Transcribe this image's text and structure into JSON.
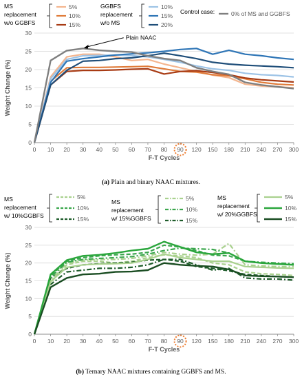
{
  "chart_data": [
    {
      "type": "line",
      "caption_letter": "(a)",
      "caption_text": "Plain and binary NAAC mixtures.",
      "xlabel": "F-T Cycles",
      "ylabel": "Weight Change (%)",
      "x": [
        0,
        10,
        20,
        30,
        40,
        50,
        60,
        70,
        80,
        90,
        120,
        150,
        180,
        210,
        240,
        270,
        300
      ],
      "ylim": [
        0,
        30
      ],
      "yticks": [
        0,
        5,
        10,
        15,
        20,
        25,
        30
      ],
      "highlight_tick": "90",
      "legend": {
        "groups": [
          {
            "title_lines": [
              "MS",
              "replacement",
              "w/o GGBFS"
            ],
            "entries": [
              0,
              1,
              2
            ]
          },
          {
            "title_lines": [
              "GGBFS",
              "replacement",
              "w/o MS"
            ],
            "entries": [
              3,
              4,
              5
            ]
          },
          {
            "title_lines": [
              "Control case:"
            ],
            "entries": [
              6
            ]
          }
        ]
      },
      "annotation": {
        "text": "Plain NAAC",
        "at_x": 30,
        "at_y": 25.9
      },
      "series": [
        {
          "name": "5%",
          "color": "#f4b58e",
          "dash": "solid",
          "width": 2.2,
          "values": [
            0,
            18,
            23.5,
            24.2,
            24.2,
            23.5,
            22.5,
            22.8,
            21.5,
            20.5,
            19.5,
            18.5,
            17.8,
            16,
            15.5,
            15.3,
            15
          ]
        },
        {
          "name": "10%",
          "color": "#e07b39",
          "dash": "solid",
          "width": 2.2,
          "values": [
            0,
            16.8,
            20.5,
            20.6,
            20.6,
            20.7,
            20.8,
            20.9,
            20.2,
            19.5,
            19.3,
            18.6,
            18.3,
            17.5,
            16.5,
            16,
            15.8
          ]
        },
        {
          "name": "15%",
          "color": "#a83b14",
          "dash": "solid",
          "width": 2.2,
          "values": [
            0,
            15.8,
            19.5,
            19.8,
            19.8,
            19.9,
            20.1,
            20.2,
            18.8,
            19.5,
            19.7,
            19.2,
            18.6,
            17.7,
            17.2,
            16.9,
            16.6
          ]
        },
        {
          "name": "10%",
          "color": "#9dc3e6",
          "dash": "solid",
          "width": 2.2,
          "values": [
            0,
            17.5,
            22.8,
            23.8,
            23.9,
            24.0,
            23.8,
            23.5,
            22.8,
            22,
            21,
            20.2,
            19.8,
            19,
            18.6,
            18.4,
            18
          ]
        },
        {
          "name": "15%",
          "color": "#2e75b6",
          "dash": "solid",
          "width": 2.2,
          "values": [
            0,
            16.5,
            22.3,
            23.0,
            23.5,
            24.0,
            24.3,
            24.6,
            25.0,
            25.5,
            25.8,
            24.2,
            25.3,
            24.2,
            23.8,
            23.2,
            22.8
          ]
        },
        {
          "name": "20%",
          "color": "#1f4e79",
          "dash": "solid",
          "width": 2.2,
          "values": [
            0,
            15.8,
            19.8,
            22.3,
            22.5,
            23.0,
            23.2,
            23.8,
            24.5,
            23.8,
            23.0,
            22.0,
            21.5,
            21.2,
            21.0,
            20.8,
            20.5
          ]
        },
        {
          "name": "0% of MS and GGBFS",
          "color": "#7f7f7f",
          "dash": "solid",
          "width": 2.4,
          "values": [
            0,
            22.5,
            25.2,
            25.8,
            25.3,
            25.0,
            24.8,
            23.8,
            23.0,
            22.5,
            20.5,
            19.5,
            18.7,
            16.5,
            15.8,
            15.3,
            14.8
          ]
        }
      ]
    },
    {
      "type": "line",
      "caption_letter": "(b)",
      "caption_text": "Ternary NAAC mixtures containing GGBFS and MS.",
      "xlabel": "F-T Cycles",
      "ylabel": "Weight Change (%)",
      "x": [
        0,
        10,
        20,
        30,
        40,
        50,
        60,
        70,
        80,
        90,
        120,
        150,
        180,
        210,
        240,
        270,
        300
      ],
      "ylim": [
        0,
        30
      ],
      "yticks": [
        0,
        5,
        10,
        15,
        20,
        25,
        30
      ],
      "highlight_tick": "90",
      "legend": {
        "groups": [
          {
            "title_lines": [
              "MS",
              "replacement",
              "w/ 10%GGBFS"
            ],
            "entries": [
              0,
              1,
              2
            ]
          },
          {
            "title_lines": [
              "MS",
              "replacement",
              "w/ 15%GGBFS"
            ],
            "entries": [
              3,
              4,
              5
            ]
          },
          {
            "title_lines": [
              "MS",
              "replacement",
              "w/ 20%GGBFS"
            ],
            "entries": [
              6,
              7,
              8
            ]
          }
        ]
      },
      "series": [
        {
          "name": "5%",
          "color": "#a9d18e",
          "dash": "dash",
          "width": 2.2,
          "values": [
            0,
            14.5,
            19.5,
            20.5,
            20.5,
            20.0,
            20.5,
            21.5,
            22.3,
            22.0,
            21.5,
            20.0,
            19.5,
            17.5,
            17.0,
            16.8,
            16.5
          ]
        },
        {
          "name": "10%",
          "color": "#3aa64c",
          "dash": "dash",
          "width": 2.2,
          "values": [
            0,
            16.5,
            20.5,
            21.5,
            22.0,
            22.3,
            22.5,
            23.0,
            25.0,
            24.5,
            23.5,
            22.2,
            22.0,
            20.5,
            20.0,
            19.8,
            19.5
          ]
        },
        {
          "name": "15%",
          "color": "#1e5c2a",
          "dash": "dash",
          "width": 2.2,
          "values": [
            0,
            15.8,
            18.5,
            19.5,
            19.8,
            20.0,
            20.2,
            20.8,
            21.0,
            20.5,
            19.0,
            18.5,
            17.8,
            16.8,
            16.5,
            16.2,
            16.0
          ]
        },
        {
          "name": "5%",
          "color": "#a9d18e",
          "dash": "dashdot",
          "width": 2.2,
          "values": [
            0,
            15.0,
            20.0,
            20.8,
            21.0,
            21.0,
            21.3,
            22.0,
            23.0,
            22.5,
            22.2,
            22.5,
            25.5,
            19.5,
            19.2,
            19.0,
            19.0
          ]
        },
        {
          "name": "10%",
          "color": "#3aa64c",
          "dash": "dashdot",
          "width": 2.2,
          "values": [
            0,
            16.0,
            20.2,
            21.0,
            21.3,
            21.5,
            21.8,
            22.5,
            23.5,
            24.2,
            24.0,
            23.8,
            22.8,
            20.5,
            20.2,
            20.0,
            19.8
          ]
        },
        {
          "name": "15%",
          "color": "#1e5c2a",
          "dash": "dashdot",
          "width": 2.2,
          "values": [
            0,
            14.0,
            17.5,
            18.0,
            18.5,
            18.5,
            18.8,
            19.5,
            21.0,
            21.0,
            19.5,
            18.0,
            18.5,
            15.8,
            15.5,
            15.5,
            15.2
          ]
        },
        {
          "name": "5%",
          "color": "#a9d18e",
          "dash": "solid",
          "width": 2.2,
          "values": [
            0,
            14.8,
            18.8,
            19.5,
            19.7,
            19.8,
            20.0,
            21.0,
            22.5,
            21.5,
            21.0,
            20.5,
            20.5,
            19.0,
            18.8,
            18.6,
            18.5
          ]
        },
        {
          "name": "10%",
          "color": "#2aa63c",
          "dash": "solid",
          "width": 2.4,
          "values": [
            0,
            16.8,
            20.8,
            22.0,
            22.3,
            22.8,
            23.5,
            24.0,
            26.0,
            24.5,
            23.0,
            22.5,
            22.8,
            20.5,
            20.0,
            19.7,
            19.5
          ]
        },
        {
          "name": "15%",
          "color": "#1a4d22",
          "dash": "solid",
          "width": 2.4,
          "values": [
            0,
            13.2,
            15.8,
            16.8,
            17.0,
            17.5,
            17.6,
            18.0,
            20.0,
            19.5,
            19.2,
            19.0,
            18.2,
            16.5,
            16.3,
            16.2,
            16.0
          ]
        }
      ]
    }
  ]
}
